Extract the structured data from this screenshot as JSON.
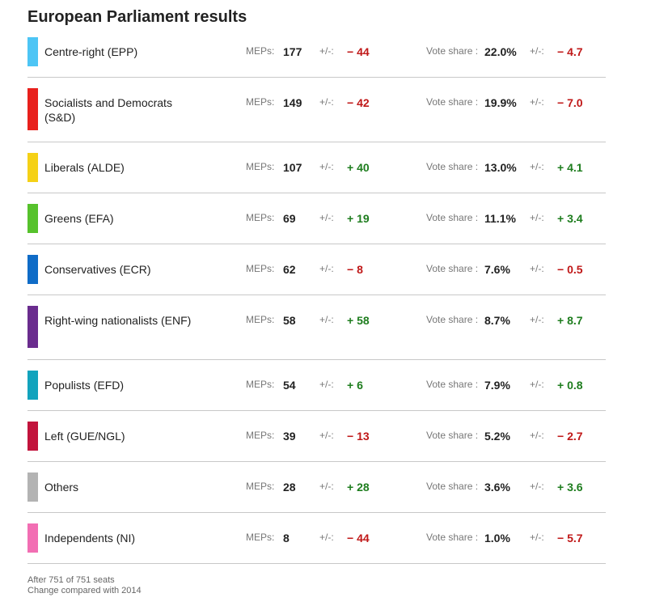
{
  "title": "European Parliament results",
  "labels": {
    "meps": "MEPs:",
    "change": "+/-:",
    "vote_share": "Vote share :",
    "vote_change": "+/-:"
  },
  "parties": [
    {
      "name": "Centre-right (EPP)",
      "color": "#4dc5f5",
      "meps": "177",
      "meps_change": "− 44",
      "meps_dir": "neg",
      "vote_share": "22.0%",
      "vote_change": "− 4.7",
      "vote_dir": "neg"
    },
    {
      "name": "Socialists and Democrats (S&D)",
      "color": "#e8201c",
      "meps": "149",
      "meps_change": "− 42",
      "meps_dir": "neg",
      "vote_share": "19.9%",
      "vote_change": "− 7.0",
      "vote_dir": "neg"
    },
    {
      "name": "Liberals (ALDE)",
      "color": "#f5d116",
      "meps": "107",
      "meps_change": "+ 40",
      "meps_dir": "pos",
      "vote_share": "13.0%",
      "vote_change": "+ 4.1",
      "vote_dir": "pos"
    },
    {
      "name": "Greens (EFA)",
      "color": "#56c22c",
      "meps": "69",
      "meps_change": "+ 19",
      "meps_dir": "pos",
      "vote_share": "11.1%",
      "vote_change": "+ 3.4",
      "vote_dir": "pos"
    },
    {
      "name": "Conservatives (ECR)",
      "color": "#0f6cc7",
      "meps": "62",
      "meps_change": "− 8",
      "meps_dir": "neg",
      "vote_share": "7.6%",
      "vote_change": "− 0.5",
      "vote_dir": "neg"
    },
    {
      "name": "Right-wing nationalists (ENF)",
      "color": "#6a2c8e",
      "meps": "58",
      "meps_change": "+ 58",
      "meps_dir": "pos",
      "vote_share": "8.7%",
      "vote_change": "+ 8.7",
      "vote_dir": "pos"
    },
    {
      "name": "Populists (EFD)",
      "color": "#12a3bd",
      "meps": "54",
      "meps_change": "+ 6",
      "meps_dir": "pos",
      "vote_share": "7.9%",
      "vote_change": "+ 0.8",
      "vote_dir": "pos"
    },
    {
      "name": "Left (GUE/NGL)",
      "color": "#c2143c",
      "meps": "39",
      "meps_change": "− 13",
      "meps_dir": "neg",
      "vote_share": "5.2%",
      "vote_change": "− 2.7",
      "vote_dir": "neg"
    },
    {
      "name": "Others",
      "color": "#b3b3b3",
      "meps": "28",
      "meps_change": "+ 28",
      "meps_dir": "pos",
      "vote_share": "3.6%",
      "vote_change": "+ 3.6",
      "vote_dir": "pos"
    },
    {
      "name": "Independents (NI)",
      "color": "#f26eb3",
      "meps": "8",
      "meps_change": "− 44",
      "meps_dir": "neg",
      "vote_share": "1.0%",
      "vote_change": "− 5.7",
      "vote_dir": "neg"
    }
  ],
  "footer": {
    "line1": "After 751 of 751 seats",
    "line2": "Change compared with 2014"
  }
}
